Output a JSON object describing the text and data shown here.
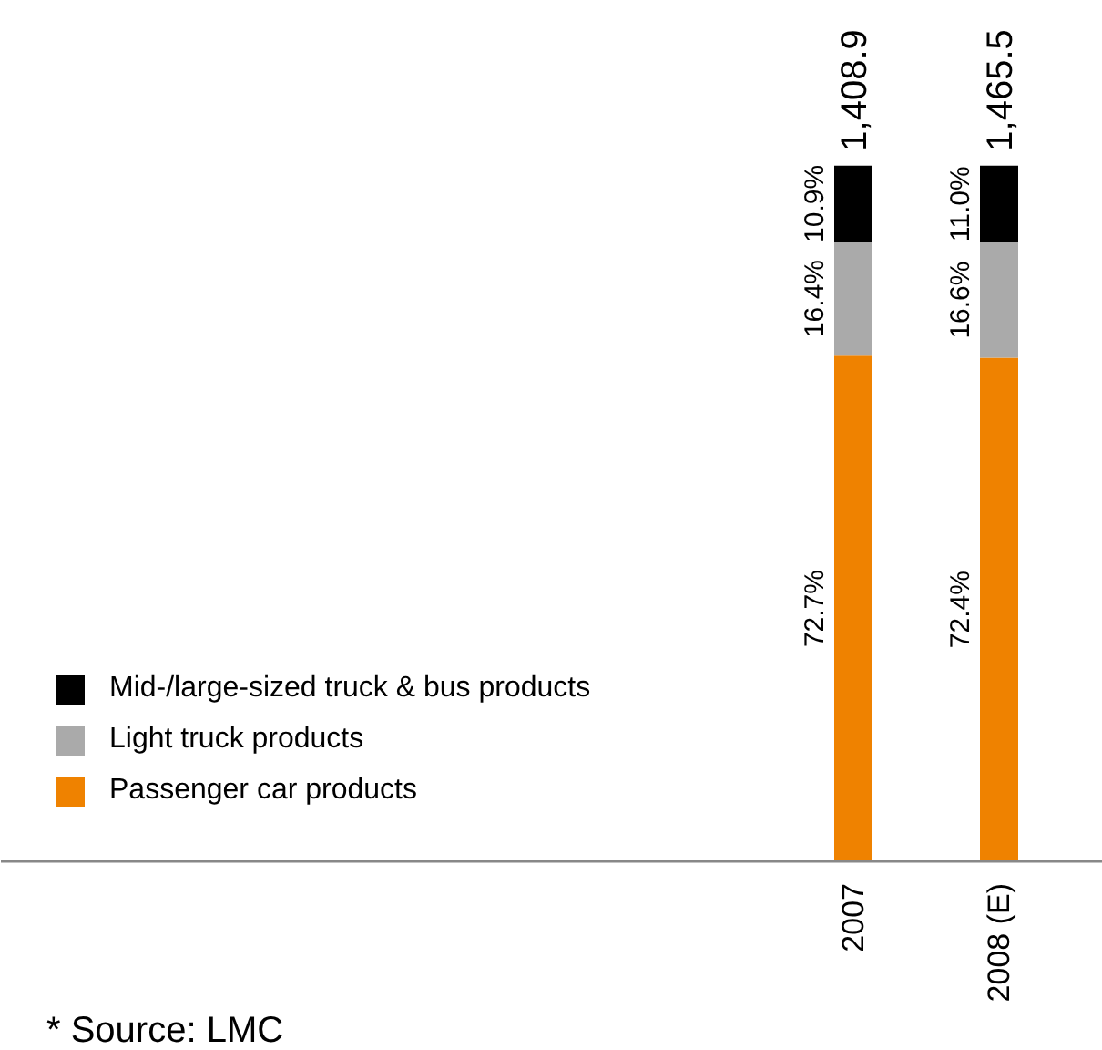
{
  "chart_data": {
    "type": "bar",
    "stacked": true,
    "categories": [
      "2007",
      "2008 (E)"
    ],
    "series": [
      {
        "name": "Passenger car products",
        "color": "#ef8200",
        "values": [
          72.7,
          72.4
        ],
        "value_labels": [
          "72.7%",
          "72.4%"
        ]
      },
      {
        "name": "Light truck products",
        "color": "#aaaaaa",
        "values": [
          16.4,
          16.6
        ],
        "value_labels": [
          "16.4%",
          "16.6%"
        ]
      },
      {
        "name": "Mid-/large-sized truck & bus products",
        "color": "#000000",
        "values": [
          10.9,
          11.0
        ],
        "value_labels": [
          "10.9%",
          "11.0%"
        ]
      }
    ],
    "legend": "bottom left",
    "grid": false,
    "tick_labels": "x",
    "annotations": [
      {
        "text": "1,408.9",
        "x": "2007",
        "y": 100
      },
      {
        "text": "1,465.5",
        "x": "2008 (E)",
        "y": 100
      },
      "* Source: LMC"
    ]
  }
}
